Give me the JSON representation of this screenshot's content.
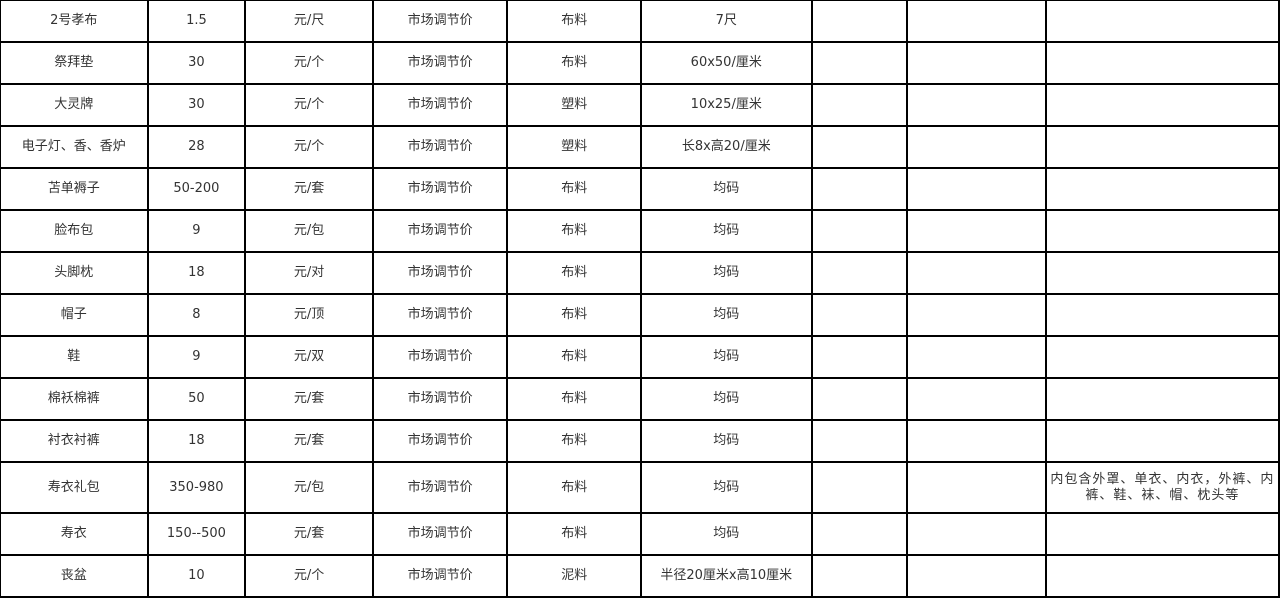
{
  "rows": [
    {
      "name": "2号孝布",
      "price": "1.5",
      "unit": "元/尺",
      "pricing": "市场调节价",
      "material": "布料",
      "size": "7尺",
      "c7": "",
      "c8": "",
      "note": ""
    },
    {
      "name": "祭拜垫",
      "price": "30",
      "unit": "元/个",
      "pricing": "市场调节价",
      "material": "布料",
      "size": "60x50/厘米",
      "c7": "",
      "c8": "",
      "note": ""
    },
    {
      "name": "大灵牌",
      "price": "30",
      "unit": "元/个",
      "pricing": "市场调节价",
      "material": "塑料",
      "size": "10x25/厘米",
      "c7": "",
      "c8": "",
      "note": ""
    },
    {
      "name": "电子灯、香、香炉",
      "price": "28",
      "unit": "元/个",
      "pricing": "市场调节价",
      "material": "塑料",
      "size": "长8x高20/厘米",
      "c7": "",
      "c8": "",
      "note": ""
    },
    {
      "name": "苫单褥子",
      "price": "50-200",
      "unit": "元/套",
      "pricing": "市场调节价",
      "material": "布料",
      "size": "均码",
      "c7": "",
      "c8": "",
      "note": ""
    },
    {
      "name": "脸布包",
      "price": "9",
      "unit": "元/包",
      "pricing": "市场调节价",
      "material": "布料",
      "size": "均码",
      "c7": "",
      "c8": "",
      "note": ""
    },
    {
      "name": "头脚枕",
      "price": "18",
      "unit": "元/对",
      "pricing": "市场调节价",
      "material": "布料",
      "size": "均码",
      "c7": "",
      "c8": "",
      "note": ""
    },
    {
      "name": "帽子",
      "price": "8",
      "unit": "元/顶",
      "pricing": "市场调节价",
      "material": "布料",
      "size": "均码",
      "c7": "",
      "c8": "",
      "note": ""
    },
    {
      "name": "鞋",
      "price": "9",
      "unit": "元/双",
      "pricing": "市场调节价",
      "material": "布料",
      "size": "均码",
      "c7": "",
      "c8": "",
      "note": ""
    },
    {
      "name": "棉袄棉裤",
      "price": "50",
      "unit": "元/套",
      "pricing": "市场调节价",
      "material": "布料",
      "size": "均码",
      "c7": "",
      "c8": "",
      "note": ""
    },
    {
      "name": "衬衣衬裤",
      "price": "18",
      "unit": "元/套",
      "pricing": "市场调节价",
      "material": "布料",
      "size": "均码",
      "c7": "",
      "c8": "",
      "note": ""
    },
    {
      "name": "寿衣礼包",
      "price": "350-980",
      "unit": "元/包",
      "pricing": "市场调节价",
      "material": "布料",
      "size": "均码",
      "c7": "",
      "c8": "",
      "note": "内包含外罩、单衣、内衣，外裤、内裤、鞋、袜、帽、枕头等"
    },
    {
      "name": "寿衣",
      "price": "150--500",
      "unit": "元/套",
      "pricing": "市场调节价",
      "material": "布料",
      "size": "均码",
      "c7": "",
      "c8": "",
      "note": ""
    },
    {
      "name": "丧盆",
      "price": "10",
      "unit": "元/个",
      "pricing": "市场调节价",
      "material": "泥料",
      "size": "半径20厘米x高10厘米",
      "c7": "",
      "c8": "",
      "note": ""
    }
  ]
}
